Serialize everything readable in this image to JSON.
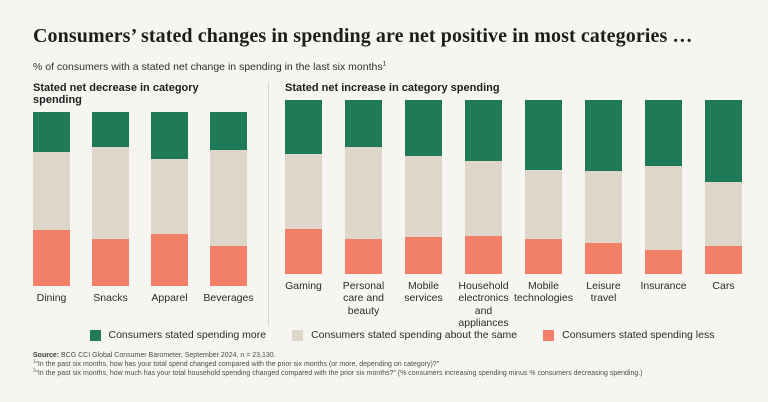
{
  "header": {
    "title": "Consumers’ stated changes in spending are net positive in most categories …",
    "subtitle": "% of consumers with a stated net change in spending in the last six months",
    "subtitle_footnote_mark": "1"
  },
  "legend": {
    "items": [
      {
        "id": "more",
        "label": "Consumers stated spending more",
        "color": "#1F7A58"
      },
      {
        "id": "same",
        "label": "Consumers stated spending about the same",
        "color": "#DDD6C9"
      },
      {
        "id": "less",
        "label": "Consumers stated spending less",
        "color": "#F28069"
      }
    ]
  },
  "footer": {
    "source_label": "Source:",
    "source_text": " BCG CCI Global Consumer Barometer, September 2024, n = 23,130.",
    "note1_mark": "1",
    "note1_text": "“In the past six months, how has your total spend changed compared with the prior six months (or more, depending on category)?”",
    "note2_mark": "2",
    "note2_text": "“In the past six months, how much has your total household spending changed compared with the prior six months?” (% consumers increasing spending minus % consumers decreasing spending.)"
  },
  "chart_data": {
    "type": "bar",
    "stacked": true,
    "unit": "% of consumers",
    "ylim": [
      0,
      100
    ],
    "grid": false,
    "legend_position": "bottom",
    "colors": {
      "more": "#1F7A58",
      "same": "#DDD6C9",
      "less": "#F28069"
    },
    "series_names": {
      "more": "Consumers stated spending more",
      "same": "Consumers stated spending about the same",
      "less": "Consumers stated spending less"
    },
    "segment_order_top_to_bottom": [
      "more",
      "same",
      "less"
    ],
    "groups": [
      {
        "label": "Stated net decrease in category spending",
        "bars": [
          {
            "label": "Dining",
            "more": 23,
            "same": 45,
            "less": 32
          },
          {
            "label": "Snacks",
            "more": 20,
            "same": 53,
            "less": 27
          },
          {
            "label": "Apparel",
            "more": 27,
            "same": 43,
            "less": 30
          },
          {
            "label": "Beverages",
            "more": 22,
            "same": 55,
            "less": 23
          }
        ]
      },
      {
        "label": "Stated net increase in category spending",
        "bars": [
          {
            "label": "Gaming",
            "more": 31,
            "same": 43,
            "less": 26
          },
          {
            "label": "Personal care and beauty",
            "more": 27,
            "same": 53,
            "less": 20
          },
          {
            "label": "Mobile services",
            "more": 32,
            "same": 47,
            "less": 21
          },
          {
            "label": "Household electronics and appliances",
            "more": 35,
            "same": 43,
            "less": 22
          },
          {
            "label": "Mobile technologies",
            "more": 40,
            "same": 40,
            "less": 20
          },
          {
            "label": "Leisure travel",
            "more": 41,
            "same": 41,
            "less": 18
          },
          {
            "label": "Insurance",
            "more": 38,
            "same": 48,
            "less": 14
          },
          {
            "label": "Cars",
            "more": 47,
            "same": 37,
            "less": 16
          }
        ]
      }
    ]
  }
}
